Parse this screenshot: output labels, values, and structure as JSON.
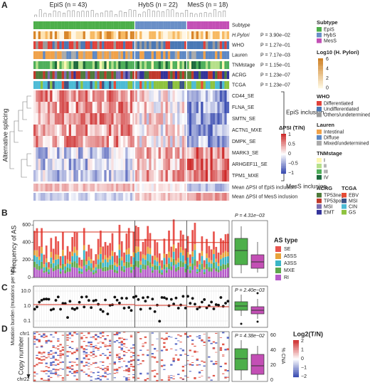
{
  "panel_labels": [
    "A",
    "B",
    "C",
    "D"
  ],
  "panel_a": {
    "groups": [
      "EpiS (n = 43)",
      "HybS (n = 22)",
      "MesS (n = 18)"
    ],
    "annotation_rows": [
      {
        "label": "Subtype"
      },
      {
        "label": "H.Pylori",
        "p": "P = 3.90e−02"
      },
      {
        "label": "WHO",
        "p": "P = 1.27e−01"
      },
      {
        "label": "Lauren",
        "p": "P = 7.17e−03"
      },
      {
        "label": "TNMstage",
        "p": "P = 1.15e−01"
      },
      {
        "label": "ACRG",
        "p": "P = 1.23e−07"
      },
      {
        "label": "TCGA",
        "p": "P = 1.23e−07"
      }
    ],
    "splicing_axis_label": "Alternative splicing",
    "events": [
      "CD44_SE",
      "FLNA_SE",
      "SMTN_SE",
      "ACTN1_MXE",
      "DMPK_SE",
      "MARK3_SE",
      "ARHGEF11_SE",
      "TPM1_MXE"
    ],
    "brackets": [
      "EpiS inclusion",
      "MesS inclusion"
    ],
    "mean_rows": [
      "Mean ΔPSI of EpiS inclusion",
      "Mean ΔPSI of MesS inclusion"
    ],
    "dpsi_legend": {
      "title": "ΔPSI (T/N)",
      "ticks": [
        "1",
        "0.5",
        "0",
        "−0.5",
        "−1"
      ]
    }
  },
  "legends": {
    "subtype": {
      "title": "Subtype",
      "items": [
        {
          "name": "EpiS",
          "color": "#4daf4a"
        },
        {
          "name": "HybS",
          "color": "#6a8fc7"
        },
        {
          "name": "MesS",
          "color": "#c34fb5"
        }
      ]
    },
    "hpylori": {
      "title": "Log10 (H. Pylori)",
      "ticks": [
        "6",
        "4",
        "2",
        "0"
      ]
    },
    "who": {
      "title": "WHO",
      "items": [
        {
          "name": "Differentiated",
          "color": "#e0413a"
        },
        {
          "name": "Undifferentiated",
          "color": "#4a78b5"
        },
        {
          "name": "Others/undetermined",
          "color": "#9a9a9a"
        }
      ]
    },
    "lauren": {
      "title": "Lauren",
      "items": [
        {
          "name": "Intestinal",
          "color": "#f0a24a"
        },
        {
          "name": "Diffuse",
          "color": "#5d88c4"
        },
        {
          "name": "Mixed/undetermined",
          "color": "#aaaaaa"
        }
      ]
    },
    "tnm": {
      "title": "TNMstage",
      "items": [
        {
          "name": "I",
          "color": "#fdf7b2"
        },
        {
          "name": "II",
          "color": "#b6e08a"
        },
        {
          "name": "III",
          "color": "#4faf5a"
        },
        {
          "name": "IV",
          "color": "#1c6a3c"
        }
      ]
    },
    "acrg": {
      "title": "ACRG",
      "items": [
        {
          "name": "TP53neg",
          "color": "#4d7a3b"
        },
        {
          "name": "TP53pos",
          "color": "#c0392b"
        },
        {
          "name": "MSI",
          "color": "#7b6fb0"
        },
        {
          "name": "EMT",
          "color": "#33339a"
        }
      ]
    },
    "tcga": {
      "title": "TCGA",
      "items": [
        {
          "name": "EBV",
          "color": "#e64b35"
        },
        {
          "name": "MSI",
          "color": "#3c5488"
        },
        {
          "name": "CIN",
          "color": "#4dbbd5"
        },
        {
          "name": "GS",
          "color": "#8ec33f"
        }
      ]
    }
  },
  "panel_b": {
    "y_label": "Frequency of AS",
    "yticks": [
      "0",
      "200",
      "400",
      "600"
    ],
    "p": "P = 4.31e−03",
    "legend_title": "AS type",
    "legend_items": [
      {
        "name": "SE",
        "color": "#e8544e"
      },
      {
        "name": "A5SS",
        "color": "#e8a33b"
      },
      {
        "name": "A3SS",
        "color": "#3bb6c6"
      },
      {
        "name": "MXE",
        "color": "#5ca84b"
      },
      {
        "name": "RI",
        "color": "#b65bc9"
      }
    ]
  },
  "panel_c": {
    "y_label": "Mutation burden (mutations per Mb)",
    "yticks": [
      "10.0",
      "1.0",
      "0.1"
    ],
    "p": "P = 2.40e−03"
  },
  "panel_d": {
    "y_label": "Copy number",
    "chr_top": "chr1",
    "chr_bottom": "chr22",
    "p": "P = 4.38e−02",
    "right_axis_label": "% CNA",
    "right_ticks": [
      "60",
      "40",
      "20",
      "0"
    ],
    "legend_title": "Log2(T/N)",
    "legend_ticks": [
      "2",
      "1",
      "0",
      "−1",
      "−2"
    ]
  }
}
